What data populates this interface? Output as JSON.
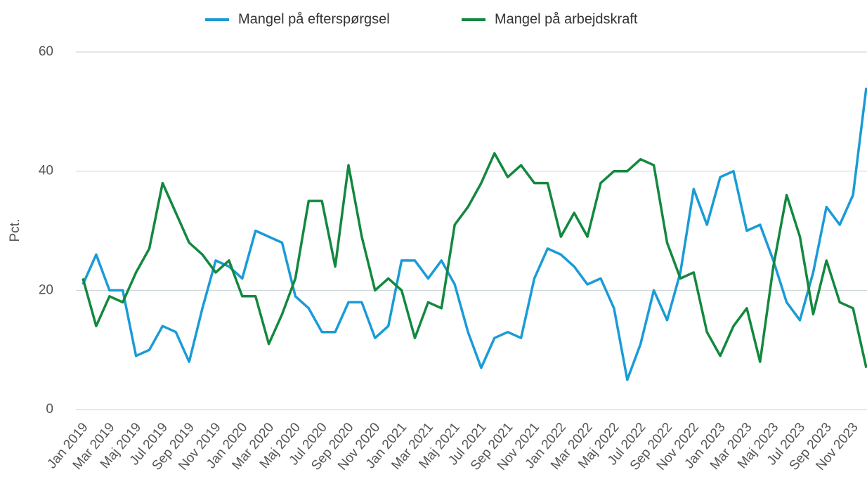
{
  "chart_data": {
    "type": "line",
    "y_label": "Pct.",
    "categories": [
      "Jan 2019",
      null,
      "Mar 2019",
      null,
      "Maj 2019",
      null,
      "Jul 2019",
      null,
      "Sep 2019",
      null,
      "Nov 2019",
      null,
      "Jan 2020",
      null,
      "Mar 2020",
      null,
      "Maj 2020",
      null,
      "Jul 2020",
      null,
      "Sep 2020",
      null,
      "Nov 2020",
      null,
      "Jan 2021",
      null,
      "Mar 2021",
      null,
      "Maj 2021",
      null,
      "Jul 2021",
      null,
      "Sep 2021",
      null,
      "Nov 2021",
      null,
      "Jan 2022",
      null,
      "Mar 2022",
      null,
      "Maj 2022",
      null,
      "Jul 2022",
      null,
      "Sep 2022",
      null,
      "Nov 2022",
      null,
      "Jan 2023",
      null,
      "Mar 2023",
      null,
      "Maj 2023",
      null,
      "Jul 2023",
      null,
      "Sep 2023",
      null,
      "Nov 2023",
      null
    ],
    "series": [
      {
        "name": "Mangel på efterspørgsel",
        "color": "#1a9bd7",
        "values": [
          21,
          26,
          20,
          20,
          9,
          10,
          14,
          13,
          8,
          17,
          25,
          24,
          22,
          30,
          29,
          28,
          19,
          17,
          13,
          13,
          18,
          18,
          12,
          14,
          25,
          25,
          22,
          25,
          21,
          13,
          7,
          12,
          13,
          12,
          22,
          27,
          26,
          24,
          21,
          22,
          17,
          5,
          11,
          20,
          15,
          23,
          37,
          31,
          39,
          40,
          30,
          31,
          25,
          18,
          15,
          23,
          34,
          31,
          36,
          54
        ]
      },
      {
        "name": "Mangel på arbejdskraft",
        "color": "#13883f",
        "values": [
          22,
          14,
          19,
          18,
          23,
          27,
          38,
          33,
          28,
          26,
          23,
          25,
          19,
          19,
          11,
          16,
          22,
          35,
          35,
          24,
          41,
          29,
          20,
          22,
          20,
          12,
          18,
          17,
          31,
          34,
          38,
          43,
          39,
          41,
          38,
          38,
          29,
          33,
          29,
          38,
          40,
          40,
          42,
          41,
          28,
          22,
          23,
          13,
          9,
          14,
          17,
          8,
          24,
          36,
          29,
          16,
          25,
          18,
          17,
          7
        ]
      }
    ],
    "ylim": [
      0,
      60
    ],
    "yticks": [
      0,
      20,
      40,
      60
    ],
    "grid": true,
    "legend": "top"
  }
}
